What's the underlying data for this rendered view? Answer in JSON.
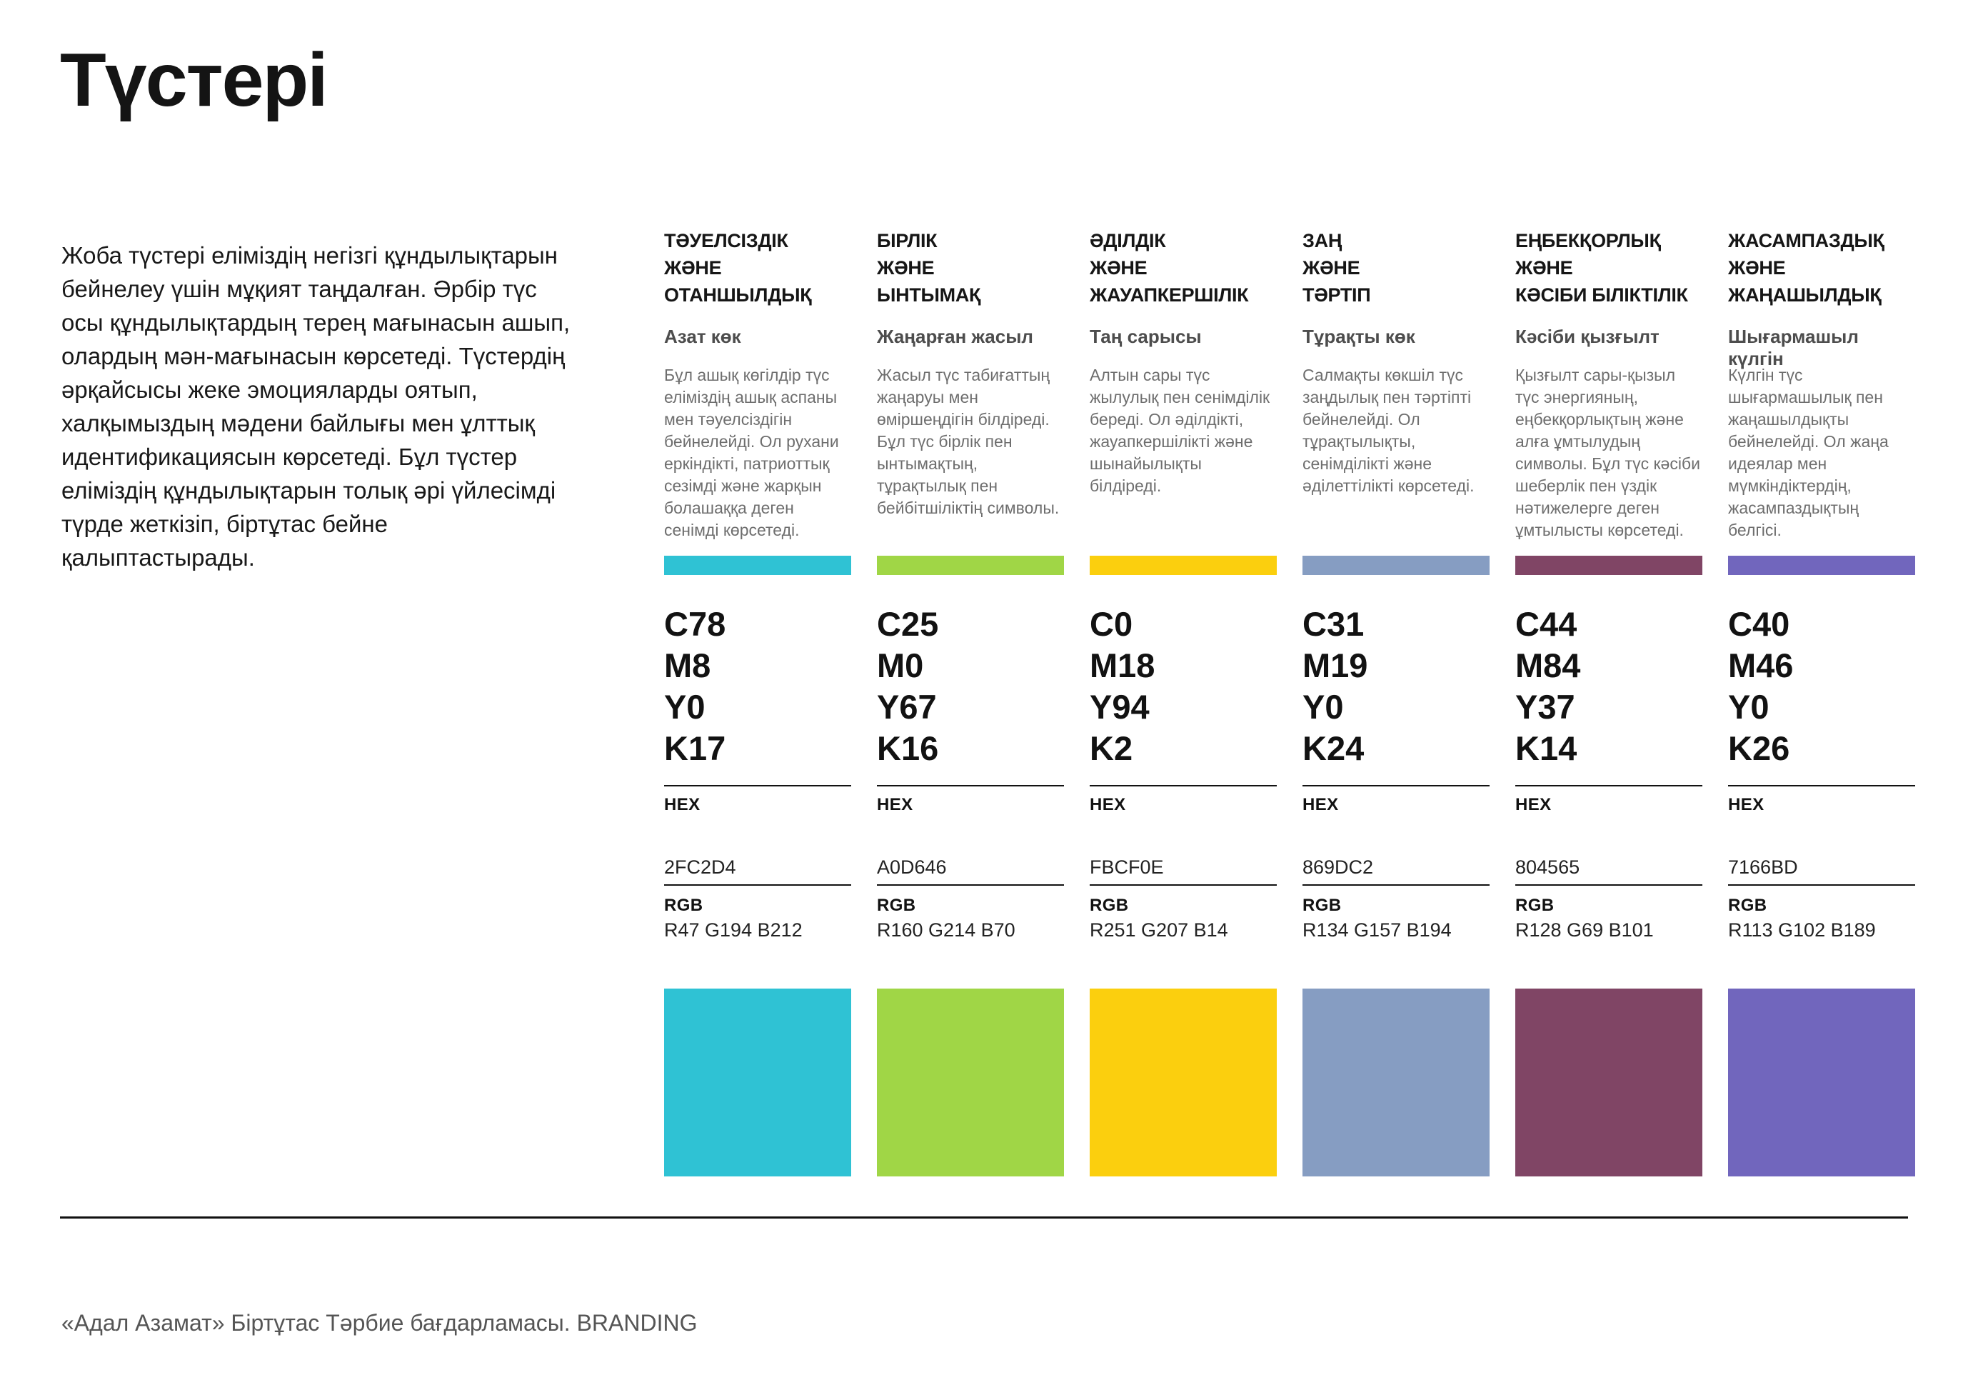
{
  "page": {
    "title": "Түстері",
    "intro": "Жоба түстері еліміздің негізгі құндылықтарын бейнелеу үшін мұқият таңдалған. Әрбір түс осы құндылықтардың терең мағынасын ашып, олардың мән-мағынасын көрсетеді. Түстердің әрқайсысы жеке эмоцияларды оятып, халқымыздың мәдени байлығы мен ұлттық идентификациясын көрсетеді. Бұл түстер еліміздің құндылықтарын толық әрі үйлесімді түрде жеткізіп, біртұтас бейне қалыптастырады.",
    "footer": "«Адал Азамат» Біртұтас Тәрбие бағдарламасы. BRANDING"
  },
  "labels": {
    "hex": "HEX",
    "rgb": "RGB"
  },
  "colors": [
    {
      "title": "ТӘУЕЛСІЗДІК\nЖӘНЕ\nОТАНШЫЛДЫҚ",
      "name": "Азат көк",
      "description": "Бұл ашық көгілдір түс еліміздің ашық аспаны мен тәуелсіздігін бейнелейді. Ол рухани еркіндікті, патриоттық сезімді және жарқын болашаққа деген сенімді көрсетеді.",
      "cmyk": [
        "C78",
        "M8",
        "Y0",
        "K17"
      ],
      "hex": "2FC2D4",
      "rgb": "R47 G194 B212"
    },
    {
      "title": "БІРЛІК\nЖӘНЕ\nЫНТЫМАҚ",
      "name": "Жаңарған жасыл",
      "description": "Жасыл түс табиғаттың жаңаруы мен өміршеңдігін білдіреді. Бұл түс бірлік пен ынтымақтың, тұрақтылық пен бейбітшіліктің символы.",
      "cmyk": [
        "C25",
        "M0",
        "Y67",
        "K16"
      ],
      "hex": "A0D646",
      "rgb": "R160 G214 B70"
    },
    {
      "title": "ӘДІЛДІК\nЖӘНЕ\nЖАУАПКЕРШІЛІК",
      "name": "Таң сарысы",
      "description": "Алтын сары түс жылулық пен сенімділік береді. Ол әділдікті, жауапкершілікті және шынайылықты білдіреді.",
      "cmyk": [
        "C0",
        "M18",
        "Y94",
        "K2"
      ],
      "hex": "FBCF0E",
      "rgb": "R251 G207 B14"
    },
    {
      "title": "ЗАҢ\nЖӘНЕ\nТӘРТІП",
      "name": "Тұрақты көк",
      "description": "Салмақты көкшіл түс заңдылық пен тәртіпті бейнелейді. Ол тұрақтылықты, сенімділікті және әділеттілікті көрсетеді.",
      "cmyk": [
        "C31",
        "M19",
        "Y0",
        "K24"
      ],
      "hex": "869DC2",
      "rgb": "R134 G157 B194"
    },
    {
      "title": "ЕҢБЕКҚОРЛЫҚ\nЖӘНЕ\nКӘСІБИ БІЛІКТІЛІК",
      "name": "Кәсіби қызғылт",
      "description": "Қызғылт сары-қызыл түс энергияның, еңбекқорлықтың және алға ұмтылудың символы. Бұл түс кәсіби шеберлік пен үздік нәтижелерге деген ұмтылысты көрсетеді.",
      "cmyk": [
        "C44",
        "M84",
        "Y37",
        "K14"
      ],
      "hex": "804565",
      "rgb": "R128 G69 B101"
    },
    {
      "title": "ЖАСАМПАЗДЫҚ\nЖӘНЕ\nЖАҢАШЫЛДЫҚ",
      "name": "Шығармашыл күлгін",
      "description": "Күлгін түс шығармашылық пен жаңашылдықты бейнелейді. Ол жаңа идеялар мен мүмкіндіктердің, жасампаздықтың белгісі.",
      "cmyk": [
        "C40",
        "M46",
        "Y0",
        "K26"
      ],
      "hex": "7166BD",
      "rgb": "R113 G102 B189"
    }
  ]
}
